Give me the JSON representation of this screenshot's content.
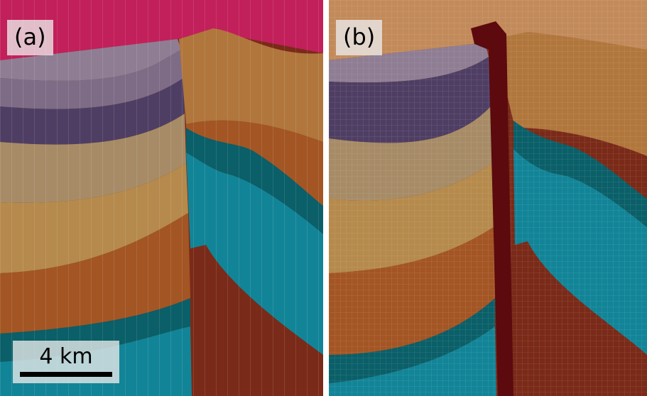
{
  "panels": [
    {
      "label": "(a)"
    },
    {
      "label": "(b)"
    }
  ],
  "scalebar": {
    "text": "4 km"
  },
  "colors": {
    "surface_pink": "#c2205a",
    "mauve": "#8f7d93",
    "purple": "#4f3e63",
    "khaki": "#a68b66",
    "tan": "#b58a4c",
    "ochre": "#b0763c",
    "orange_brown": "#a35524",
    "teal_dark": "#0a5f68",
    "teal": "#128497",
    "deep_brown": "#7a2a18",
    "fault_red": "#5c0a0e"
  }
}
